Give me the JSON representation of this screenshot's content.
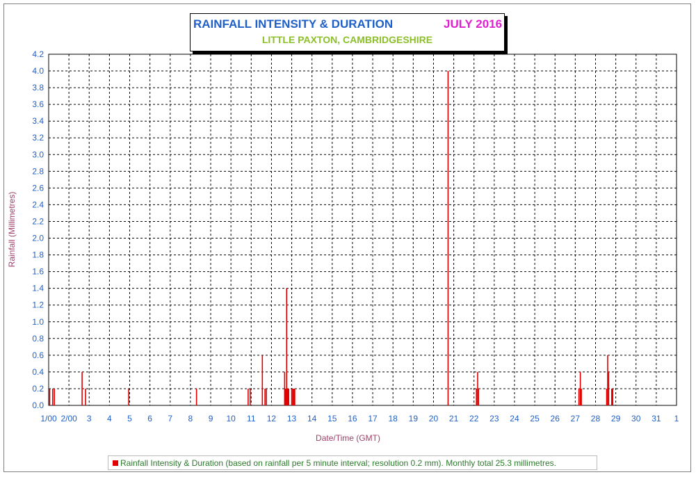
{
  "chart_data": {
    "type": "bar",
    "title": "RAINFALL INTENSITY & DURATION",
    "title_month": "JULY 2016",
    "subtitle": "LITTLE PAXTON, CAMBRIDGESHIRE",
    "ylabel": "Rainfall (Millimetres)",
    "xlabel": "Date/Time (GMT)",
    "ylim": [
      0,
      4.2
    ],
    "xlim": [
      1,
      32
    ],
    "yticks": [
      "0.0",
      "0.2",
      "0.4",
      "0.6",
      "0.8",
      "1.0",
      "1.2",
      "1.4",
      "1.6",
      "1.8",
      "2.0",
      "2.2",
      "2.4",
      "2.6",
      "2.8",
      "3.0",
      "3.2",
      "3.4",
      "3.6",
      "3.8",
      "4.0",
      "4.2"
    ],
    "xticks": [
      "1/00",
      "2/00",
      "3",
      "4",
      "5",
      "6",
      "7",
      "8",
      "9",
      "10",
      "11",
      "12",
      "13",
      "14",
      "15",
      "16",
      "17",
      "18",
      "19",
      "20",
      "21",
      "22",
      "23",
      "24",
      "25",
      "26",
      "27",
      "28",
      "29",
      "30",
      "31",
      "1"
    ],
    "grid": true,
    "bar_color": "#e00000",
    "series": [
      {
        "name": "Rainfall Intensity & Duration (based on rainfall per 5 minute interval; resolution 0.2 mm). Monthly total 25.3 millimetres.",
        "x": [
          1.05,
          1.2,
          1.28,
          2.65,
          2.82,
          4.95,
          8.3,
          10.85,
          10.95,
          11.55,
          11.68,
          11.75,
          12.65,
          12.68,
          12.72,
          12.75,
          12.78,
          12.8,
          12.85,
          13.0,
          13.05,
          13.1,
          13.12,
          13.15,
          20.72,
          22.12,
          22.18,
          22.22,
          27.18,
          27.25,
          27.3,
          28.55,
          28.6,
          28.65,
          28.8,
          28.85
        ],
        "values": [
          0.2,
          0.2,
          0.2,
          0.4,
          0.2,
          0.2,
          0.2,
          0.2,
          0.2,
          0.6,
          0.2,
          0.2,
          0.4,
          0.2,
          0.2,
          1.4,
          0.2,
          0.2,
          0.2,
          0.2,
          0.2,
          0.2,
          0.2,
          0.2,
          4.0,
          0.2,
          0.4,
          0.2,
          0.2,
          0.4,
          0.2,
          0.2,
          0.6,
          0.4,
          0.2,
          0.2
        ]
      }
    ]
  }
}
